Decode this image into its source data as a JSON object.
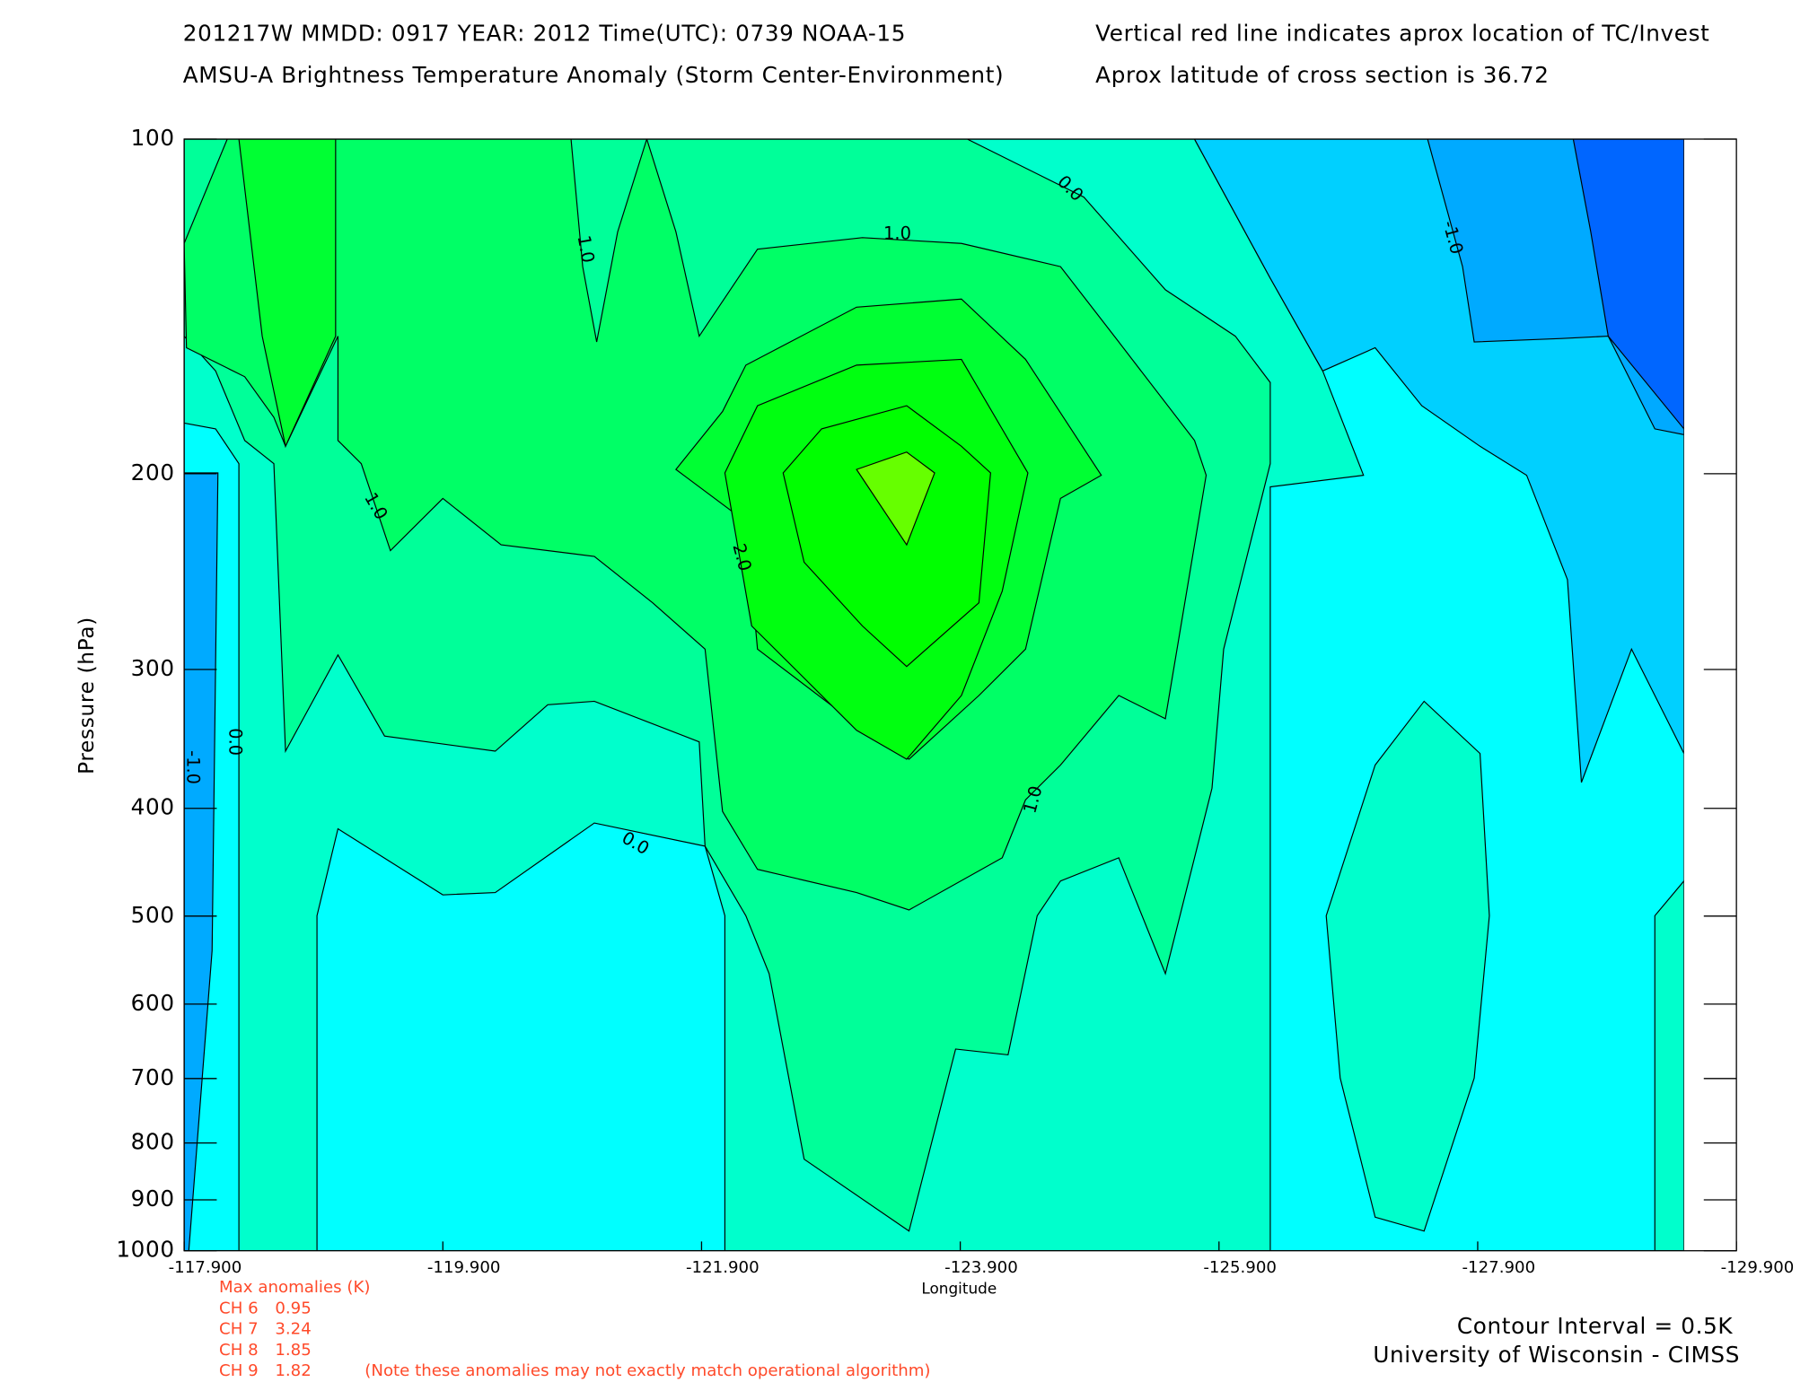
{
  "chart_data": {
    "type": "contour",
    "header": {
      "left": [
        "201217W  MMDD: 0917 YEAR: 2012 Time(UTC): 0739 NOAA-15",
        "AMSU-A Brightness Temperature Anomaly (Storm Center-Environment)"
      ],
      "right": [
        "Vertical red line indicates aprox location of TC/Invest",
        "Aprox latitude of cross section is 36.72"
      ]
    },
    "xlabel": "Longitude",
    "ylabel": "Pressure (hPa)",
    "xlim": [
      -117.9,
      -129.9
    ],
    "xticks": [
      {
        "value": -117.9,
        "label": "-117.900"
      },
      {
        "value": -119.9,
        "label": "-119.900"
      },
      {
        "value": -121.9,
        "label": "-121.900"
      },
      {
        "value": -123.9,
        "label": "-123.900"
      },
      {
        "value": -125.9,
        "label": "-125.900"
      },
      {
        "value": -127.9,
        "label": "-127.900"
      },
      {
        "value": -129.9,
        "label": "-129.900"
      }
    ],
    "ylim": [
      100,
      1000
    ],
    "ylog": true,
    "yreversed": true,
    "yticks": [
      100,
      200,
      300,
      400,
      500,
      600,
      700,
      800,
      900,
      1000
    ],
    "levels": [
      {
        "value": -2,
        "color": "#0066ff"
      },
      {
        "value": -1.5,
        "color": "#00aaff"
      },
      {
        "value": -1,
        "color": "#00d0ff"
      },
      {
        "value": -0.5,
        "color": "#00ffff"
      },
      {
        "value": 0,
        "color": "#00ffcc"
      },
      {
        "value": 0.5,
        "color": "#00ff99"
      },
      {
        "value": 1,
        "color": "#00ff66"
      },
      {
        "value": 1.5,
        "color": "#00ff33"
      },
      {
        "value": 2,
        "color": "#00ff10"
      },
      {
        "value": 2.5,
        "color": "#00ff00"
      },
      {
        "value": 3,
        "color": "#66ff00"
      }
    ],
    "contour_labels": [
      {
        "value": 1,
        "label": "1.0"
      },
      {
        "value": 1,
        "label": "1.0"
      },
      {
        "value": 1,
        "label": "1.0"
      },
      {
        "value": 1,
        "label": "1.0"
      },
      {
        "value": 0,
        "label": "0.0"
      },
      {
        "value": 0,
        "label": "0.0"
      },
      {
        "value": 0,
        "label": "0.0"
      },
      {
        "value": 2,
        "label": "2.0"
      },
      {
        "value": -1,
        "label": "-1.0"
      },
      {
        "value": -1,
        "label": "-1.0"
      }
    ],
    "max_anomalies": {
      "title": "Max anomalies (K)",
      "items": [
        {
          "channel": "CH 6",
          "value": 0.95
        },
        {
          "channel": "CH 7",
          "value": 3.24
        },
        {
          "channel": "CH 8",
          "value": 1.85
        },
        {
          "channel": "CH 9",
          "value": 1.82
        }
      ],
      "note": "(Note these anomalies may not exactly match operational algorithm)"
    },
    "contour_interval": "Contour Interval = 0.5K",
    "credit": "University of Wisconsin - CIMSS"
  }
}
